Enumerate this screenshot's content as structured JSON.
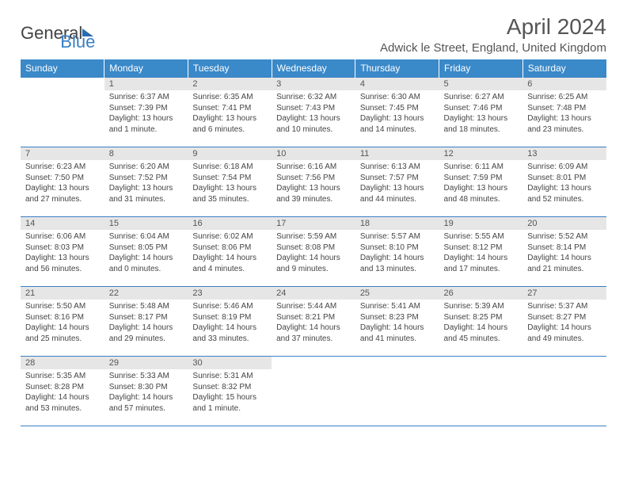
{
  "logo": {
    "text1": "General",
    "text2": "Blue"
  },
  "title": "April 2024",
  "location": "Adwick le Street, England, United Kingdom",
  "header_bg": "#3a89c9",
  "accent_color": "#3a7fc4",
  "daynum_bg": "#e6e6e6",
  "weekdays": [
    "Sunday",
    "Monday",
    "Tuesday",
    "Wednesday",
    "Thursday",
    "Friday",
    "Saturday"
  ],
  "weeks": [
    [
      null,
      {
        "n": "1",
        "sr": "Sunrise: 6:37 AM",
        "ss": "Sunset: 7:39 PM",
        "d1": "Daylight: 13 hours",
        "d2": "and 1 minute."
      },
      {
        "n": "2",
        "sr": "Sunrise: 6:35 AM",
        "ss": "Sunset: 7:41 PM",
        "d1": "Daylight: 13 hours",
        "d2": "and 6 minutes."
      },
      {
        "n": "3",
        "sr": "Sunrise: 6:32 AM",
        "ss": "Sunset: 7:43 PM",
        "d1": "Daylight: 13 hours",
        "d2": "and 10 minutes."
      },
      {
        "n": "4",
        "sr": "Sunrise: 6:30 AM",
        "ss": "Sunset: 7:45 PM",
        "d1": "Daylight: 13 hours",
        "d2": "and 14 minutes."
      },
      {
        "n": "5",
        "sr": "Sunrise: 6:27 AM",
        "ss": "Sunset: 7:46 PM",
        "d1": "Daylight: 13 hours",
        "d2": "and 18 minutes."
      },
      {
        "n": "6",
        "sr": "Sunrise: 6:25 AM",
        "ss": "Sunset: 7:48 PM",
        "d1": "Daylight: 13 hours",
        "d2": "and 23 minutes."
      }
    ],
    [
      {
        "n": "7",
        "sr": "Sunrise: 6:23 AM",
        "ss": "Sunset: 7:50 PM",
        "d1": "Daylight: 13 hours",
        "d2": "and 27 minutes."
      },
      {
        "n": "8",
        "sr": "Sunrise: 6:20 AM",
        "ss": "Sunset: 7:52 PM",
        "d1": "Daylight: 13 hours",
        "d2": "and 31 minutes."
      },
      {
        "n": "9",
        "sr": "Sunrise: 6:18 AM",
        "ss": "Sunset: 7:54 PM",
        "d1": "Daylight: 13 hours",
        "d2": "and 35 minutes."
      },
      {
        "n": "10",
        "sr": "Sunrise: 6:16 AM",
        "ss": "Sunset: 7:56 PM",
        "d1": "Daylight: 13 hours",
        "d2": "and 39 minutes."
      },
      {
        "n": "11",
        "sr": "Sunrise: 6:13 AM",
        "ss": "Sunset: 7:57 PM",
        "d1": "Daylight: 13 hours",
        "d2": "and 44 minutes."
      },
      {
        "n": "12",
        "sr": "Sunrise: 6:11 AM",
        "ss": "Sunset: 7:59 PM",
        "d1": "Daylight: 13 hours",
        "d2": "and 48 minutes."
      },
      {
        "n": "13",
        "sr": "Sunrise: 6:09 AM",
        "ss": "Sunset: 8:01 PM",
        "d1": "Daylight: 13 hours",
        "d2": "and 52 minutes."
      }
    ],
    [
      {
        "n": "14",
        "sr": "Sunrise: 6:06 AM",
        "ss": "Sunset: 8:03 PM",
        "d1": "Daylight: 13 hours",
        "d2": "and 56 minutes."
      },
      {
        "n": "15",
        "sr": "Sunrise: 6:04 AM",
        "ss": "Sunset: 8:05 PM",
        "d1": "Daylight: 14 hours",
        "d2": "and 0 minutes."
      },
      {
        "n": "16",
        "sr": "Sunrise: 6:02 AM",
        "ss": "Sunset: 8:06 PM",
        "d1": "Daylight: 14 hours",
        "d2": "and 4 minutes."
      },
      {
        "n": "17",
        "sr": "Sunrise: 5:59 AM",
        "ss": "Sunset: 8:08 PM",
        "d1": "Daylight: 14 hours",
        "d2": "and 9 minutes."
      },
      {
        "n": "18",
        "sr": "Sunrise: 5:57 AM",
        "ss": "Sunset: 8:10 PM",
        "d1": "Daylight: 14 hours",
        "d2": "and 13 minutes."
      },
      {
        "n": "19",
        "sr": "Sunrise: 5:55 AM",
        "ss": "Sunset: 8:12 PM",
        "d1": "Daylight: 14 hours",
        "d2": "and 17 minutes."
      },
      {
        "n": "20",
        "sr": "Sunrise: 5:52 AM",
        "ss": "Sunset: 8:14 PM",
        "d1": "Daylight: 14 hours",
        "d2": "and 21 minutes."
      }
    ],
    [
      {
        "n": "21",
        "sr": "Sunrise: 5:50 AM",
        "ss": "Sunset: 8:16 PM",
        "d1": "Daylight: 14 hours",
        "d2": "and 25 minutes."
      },
      {
        "n": "22",
        "sr": "Sunrise: 5:48 AM",
        "ss": "Sunset: 8:17 PM",
        "d1": "Daylight: 14 hours",
        "d2": "and 29 minutes."
      },
      {
        "n": "23",
        "sr": "Sunrise: 5:46 AM",
        "ss": "Sunset: 8:19 PM",
        "d1": "Daylight: 14 hours",
        "d2": "and 33 minutes."
      },
      {
        "n": "24",
        "sr": "Sunrise: 5:44 AM",
        "ss": "Sunset: 8:21 PM",
        "d1": "Daylight: 14 hours",
        "d2": "and 37 minutes."
      },
      {
        "n": "25",
        "sr": "Sunrise: 5:41 AM",
        "ss": "Sunset: 8:23 PM",
        "d1": "Daylight: 14 hours",
        "d2": "and 41 minutes."
      },
      {
        "n": "26",
        "sr": "Sunrise: 5:39 AM",
        "ss": "Sunset: 8:25 PM",
        "d1": "Daylight: 14 hours",
        "d2": "and 45 minutes."
      },
      {
        "n": "27",
        "sr": "Sunrise: 5:37 AM",
        "ss": "Sunset: 8:27 PM",
        "d1": "Daylight: 14 hours",
        "d2": "and 49 minutes."
      }
    ],
    [
      {
        "n": "28",
        "sr": "Sunrise: 5:35 AM",
        "ss": "Sunset: 8:28 PM",
        "d1": "Daylight: 14 hours",
        "d2": "and 53 minutes."
      },
      {
        "n": "29",
        "sr": "Sunrise: 5:33 AM",
        "ss": "Sunset: 8:30 PM",
        "d1": "Daylight: 14 hours",
        "d2": "and 57 minutes."
      },
      {
        "n": "30",
        "sr": "Sunrise: 5:31 AM",
        "ss": "Sunset: 8:32 PM",
        "d1": "Daylight: 15 hours",
        "d2": "and 1 minute."
      },
      null,
      null,
      null,
      null
    ]
  ]
}
